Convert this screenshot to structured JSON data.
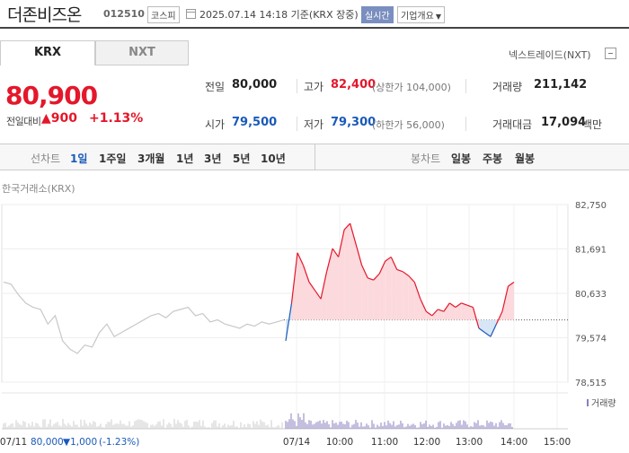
{
  "header": {
    "stock_name": "더존비즈온",
    "stock_code": "012510",
    "market": "코스피",
    "datetime": "2025.07.14 14:18 기준(KRX 장중)",
    "realtime": "실시간",
    "company_info": "기업개요"
  },
  "tabs": {
    "krx": "KRX",
    "nxt": "NXT",
    "nextrade": "넥스트레이드(NXT)"
  },
  "price": {
    "current": "80,900",
    "change_label": "전일대비",
    "change": "▲900",
    "change_pct": "+1.13%"
  },
  "stats": {
    "prev_label": "전일",
    "prev": "80,000",
    "open_label": "시가",
    "open": "79,500",
    "high_label": "고가",
    "high": "82,400",
    "upper_limit": "(상한가 104,000)",
    "low_label": "저가",
    "low": "79,300",
    "lower_limit": "(하한가 56,000)",
    "volume_label": "거래량",
    "volume": "211,142",
    "amount_label": "거래대금",
    "amount": "17,094",
    "amount_unit": "백만"
  },
  "period": {
    "line_label": "선차트",
    "line_items": [
      "1일",
      "1주일",
      "3개월",
      "1년",
      "3년",
      "5년",
      "10년"
    ],
    "active": "1일",
    "candle_label": "봉차트",
    "candle_items": [
      "일봉",
      "주봉",
      "월봉"
    ]
  },
  "chart_data": {
    "type": "line",
    "source_label": "한국거래소(KRX)",
    "y_ticks": [
      "82,750",
      "81,691",
      "80,633",
      "79,574",
      "78,515"
    ],
    "y_tick_values": [
      82750,
      81691,
      80633,
      79574,
      78515
    ],
    "ylim": [
      78515,
      82750
    ],
    "baseline": 80000,
    "x_tick_labels": [
      "07/11",
      "07/14",
      "10:00",
      "11:00",
      "12:00",
      "13:00",
      "14:00",
      "15:00"
    ],
    "prev_day_close_label": "07/11",
    "prev_day_close": "80,000",
    "prev_day_change": "▼1,000",
    "prev_day_change_pct": "(-1.23%)",
    "volume_label": "거래량",
    "colors": {
      "up": "#e4172b",
      "down": "#1a5ab8",
      "prev": "#c8c8c8",
      "up_fill": "#fbd9dc",
      "down_fill": "#d6e6f7",
      "volume": "#8a7fbf"
    },
    "prev_day_series": [
      80900,
      80850,
      80600,
      80400,
      80300,
      80250,
      79900,
      80100,
      79500,
      79300,
      79200,
      79400,
      79350,
      79700,
      79900,
      79600,
      79700,
      79800,
      79900,
      80000,
      80100,
      80150,
      80050,
      80200,
      80250,
      80300,
      80100,
      80150,
      79950,
      80000,
      79900,
      79850,
      79800,
      79900,
      79850,
      79950,
      79900,
      79950,
      80000
    ],
    "today_series": [
      79500,
      80400,
      81600,
      81300,
      80900,
      80700,
      80500,
      81150,
      81700,
      81500,
      82150,
      82300,
      81800,
      81300,
      81000,
      80950,
      81100,
      81400,
      81500,
      81200,
      81150,
      81050,
      80900,
      80500,
      80200,
      80100,
      80250,
      80200,
      80400,
      80300,
      80400,
      80350,
      80300,
      79800,
      79700,
      79600,
      79900,
      80200,
      80800,
      80900
    ]
  }
}
